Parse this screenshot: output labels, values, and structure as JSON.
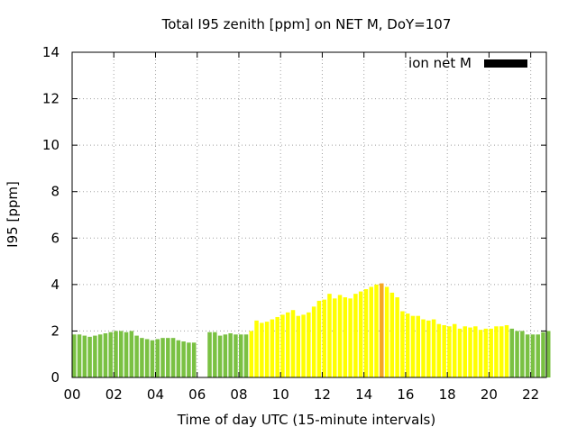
{
  "chart_data": {
    "type": "bar",
    "title": "Total I95 zenith [ppm] on NET M, DoY=107",
    "xlabel": "Time of day UTC (15-minute intervals)",
    "ylabel": "I95 [ppm]",
    "xlim": [
      0,
      22.75
    ],
    "ylim": [
      0,
      14
    ],
    "x_ticks": [
      "00",
      "02",
      "04",
      "06",
      "08",
      "10",
      "12",
      "14",
      "16",
      "18",
      "20",
      "22"
    ],
    "y_ticks": [
      "0",
      "2",
      "4",
      "6",
      "8",
      "10",
      "12",
      "14"
    ],
    "grid": true,
    "legend_position": "top-right",
    "legend": [
      {
        "name": "ion net M",
        "color": "#000000"
      }
    ],
    "bin_hours": 0.25,
    "series": [
      {
        "name": "ion net M",
        "start_hour": 0.0,
        "values": [
          1.85,
          1.85,
          1.8,
          1.75,
          1.8,
          1.85,
          1.9,
          1.95,
          2.0,
          2.0,
          1.95,
          2.0,
          1.8,
          1.7,
          1.65,
          1.6,
          1.65,
          1.7,
          1.7,
          1.7,
          1.6,
          1.55,
          1.5,
          1.5,
          null,
          null,
          1.95,
          1.95,
          1.8,
          1.85,
          1.9,
          1.85,
          1.85,
          1.85,
          2.0,
          2.45,
          2.35,
          2.4,
          2.5,
          2.6,
          2.7,
          2.8,
          2.9,
          2.65,
          2.7,
          2.8,
          3.05,
          3.3,
          3.35,
          3.6,
          3.4,
          3.55,
          3.45,
          3.4,
          3.6,
          3.7,
          3.8,
          3.9,
          4.0,
          4.05,
          3.9,
          3.65,
          3.45,
          2.85,
          2.75,
          2.65,
          2.65,
          2.5,
          2.45,
          2.5,
          2.3,
          2.25,
          2.2,
          2.3,
          2.1,
          2.2,
          2.15,
          2.2,
          2.05,
          2.1,
          2.1,
          2.2,
          2.2,
          2.25,
          2.1,
          2.0,
          2.0,
          1.85,
          1.85,
          1.85,
          1.95,
          2.0
        ],
        "colors": [
          "#7ac143",
          "#7ac143",
          "#7ac143",
          "#7ac143",
          "#7ac143",
          "#7ac143",
          "#7ac143",
          "#7ac143",
          "#7ac143",
          "#7ac143",
          "#7ac143",
          "#7ac143",
          "#7ac143",
          "#7ac143",
          "#7ac143",
          "#7ac143",
          "#7ac143",
          "#7ac143",
          "#7ac143",
          "#7ac143",
          "#7ac143",
          "#7ac143",
          "#7ac143",
          "#7ac143",
          "#7ac143",
          "#7ac143",
          "#7ac143",
          "#7ac143",
          "#7ac143",
          "#7ac143",
          "#7ac143",
          "#7ac143",
          "#7ac143",
          "#7ac143",
          "#ffff00",
          "#ffff00",
          "#ffff00",
          "#ffff00",
          "#ffff00",
          "#ffff00",
          "#ffff00",
          "#ffff00",
          "#ffff00",
          "#ffff00",
          "#ffff00",
          "#ffff00",
          "#ffff00",
          "#ffff00",
          "#ffff00",
          "#ffff00",
          "#ffff00",
          "#ffff00",
          "#ffff00",
          "#ffff00",
          "#ffff00",
          "#ffff00",
          "#ffff00",
          "#ffff00",
          "#ffff00",
          "#f5a623",
          "#ffff00",
          "#ffff00",
          "#ffff00",
          "#ffff00",
          "#ffff00",
          "#ffff00",
          "#ffff00",
          "#ffff00",
          "#ffff00",
          "#ffff00",
          "#ffff00",
          "#ffff00",
          "#ffff00",
          "#ffff00",
          "#ffff00",
          "#ffff00",
          "#ffff00",
          "#ffff00",
          "#ffff00",
          "#ffff00",
          "#ffff00",
          "#ffff00",
          "#ffff00",
          "#ffff00",
          "#7ac143",
          "#7ac143",
          "#7ac143",
          "#7ac143",
          "#7ac143",
          "#7ac143",
          "#7ac143",
          "#7ac143"
        ]
      }
    ]
  }
}
